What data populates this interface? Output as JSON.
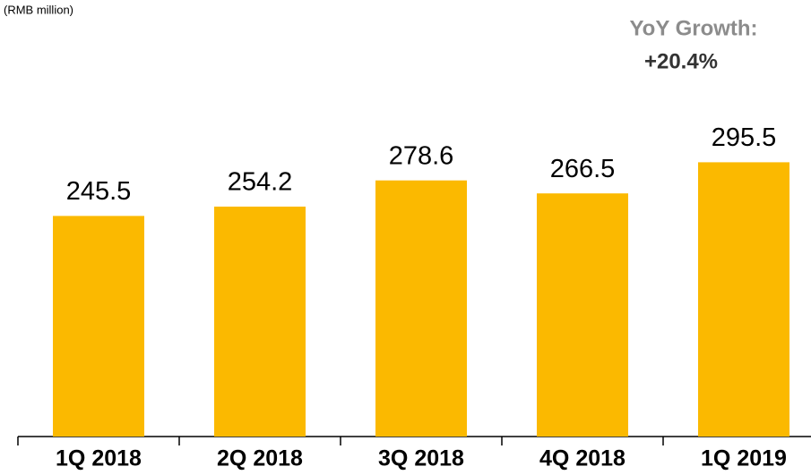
{
  "chart_data": {
    "type": "bar",
    "subtitle": "(RMB million)",
    "annotations": [
      "YoY Growth:",
      "+20.4%"
    ],
    "categories": [
      "1Q 2018",
      "2Q 2018",
      "3Q 2018",
      "4Q 2018",
      "1Q 2019"
    ],
    "values": [
      245.5,
      254.2,
      278.6,
      266.5,
      295.5
    ],
    "color": "#fbb900",
    "ylim": [
      40,
      340
    ]
  }
}
